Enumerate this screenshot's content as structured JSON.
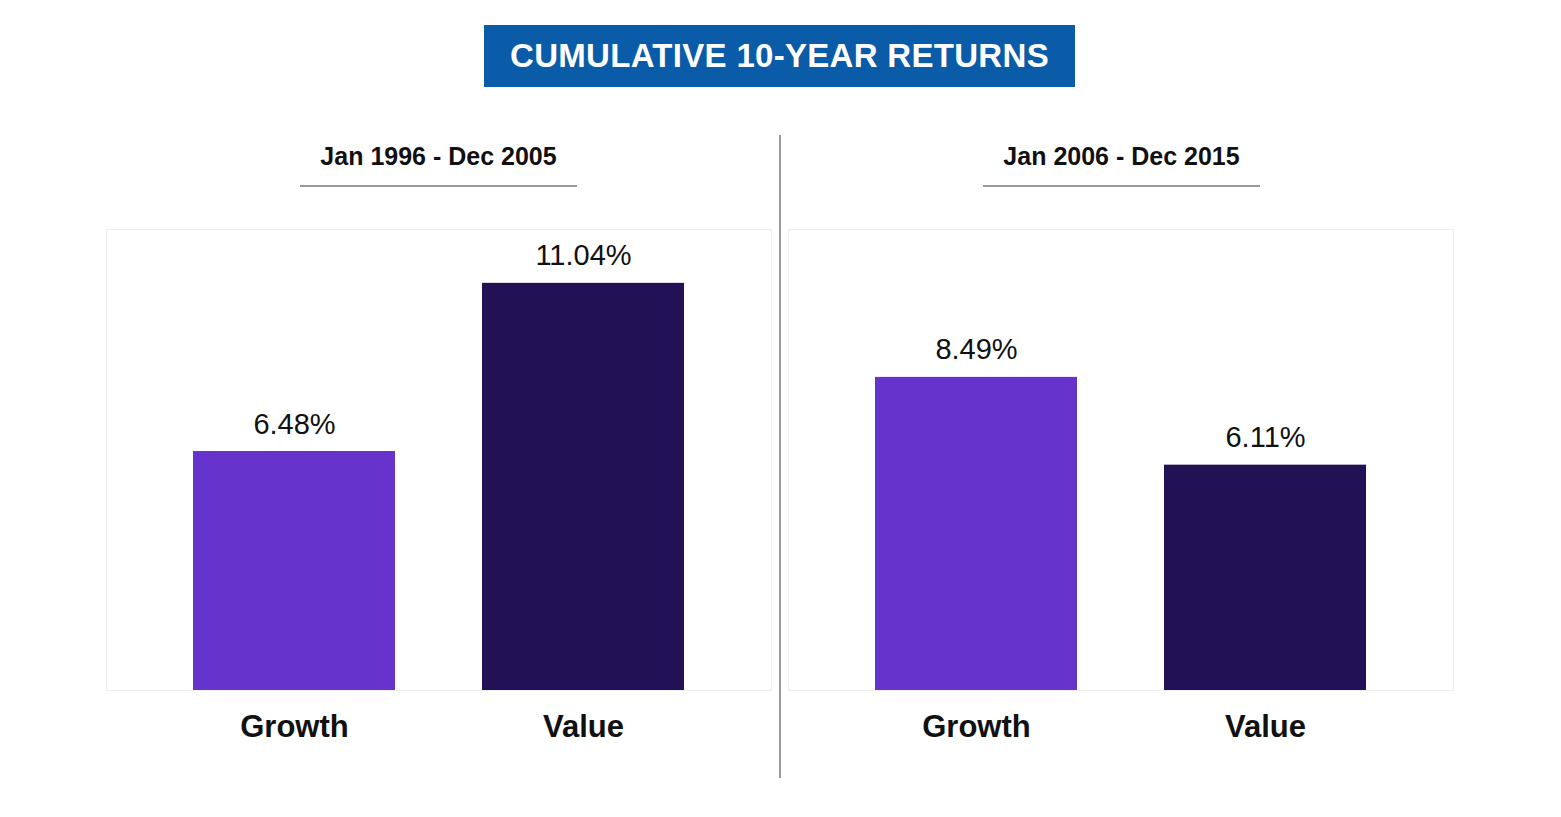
{
  "title": "CUMULATIVE 10-YEAR RETURNS",
  "chart_data": [
    {
      "type": "bar",
      "title": "Jan 1996 - Dec 2005",
      "categories": [
        "Growth",
        "Value"
      ],
      "values": [
        6.48,
        11.04
      ],
      "value_labels": [
        "6.48%",
        "11.04%"
      ],
      "colors": [
        "#6633cc",
        "#231155"
      ],
      "ylim": [
        0,
        12.5
      ],
      "yticks": [],
      "data_labels": true,
      "tick_labels": "x",
      "grid": false
    },
    {
      "type": "bar",
      "title": "Jan 2006 - Dec 2015",
      "categories": [
        "Growth",
        "Value"
      ],
      "values": [
        8.49,
        6.11
      ],
      "value_labels": [
        "8.49%",
        "6.11%"
      ],
      "colors": [
        "#6633cc",
        "#231155"
      ],
      "ylim": [
        0,
        12.5
      ],
      "yticks": [],
      "data_labels": true,
      "tick_labels": "x",
      "grid": false
    }
  ]
}
